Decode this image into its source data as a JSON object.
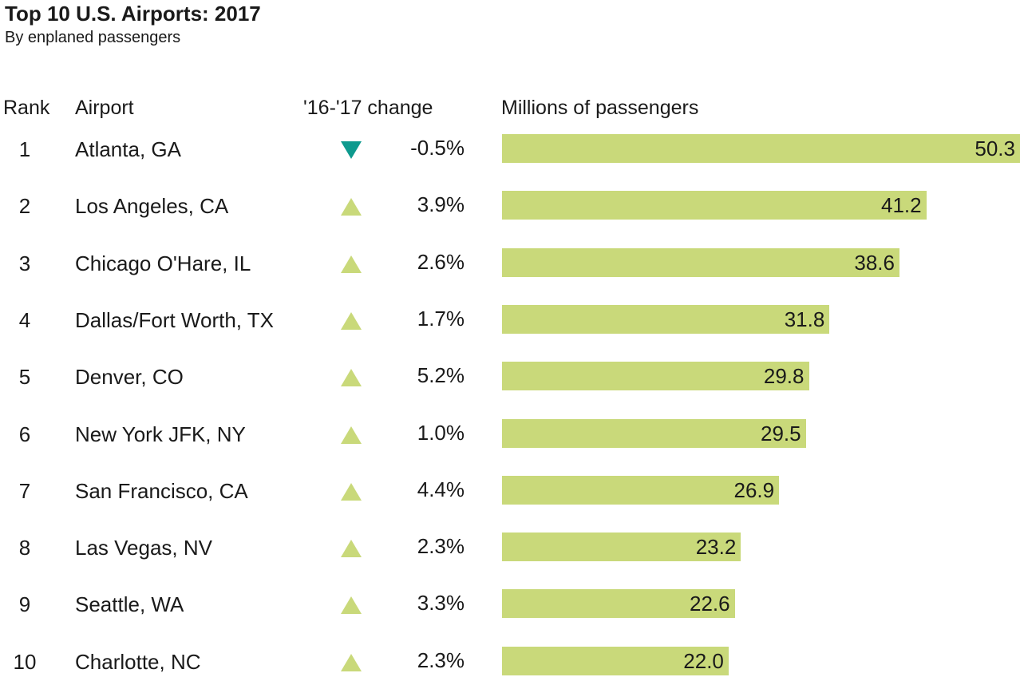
{
  "title": "Top 10 U.S. Airports: 2017",
  "subtitle": "By enplaned passengers",
  "headers": {
    "rank": "Rank",
    "airport": "Airport",
    "change": "'16-'17 change",
    "passengers": "Millions of passengers"
  },
  "colors": {
    "bar": "#c9d97a",
    "up_arrow": "#c9d97a",
    "down_arrow": "#0e9a8e"
  },
  "chart_data": {
    "type": "bar",
    "orientation": "horizontal",
    "title": "Top 10 U.S. Airports: 2017",
    "subtitle": "By enplaned passengers",
    "xlabel": "Millions of passengers",
    "xlim": [
      0,
      50.3
    ],
    "grid": false,
    "rows": [
      {
        "rank": "1",
        "airport": "Atlanta, GA",
        "change": "-0.5%",
        "direction": "down",
        "value": 50.3,
        "label": "50.3"
      },
      {
        "rank": "2",
        "airport": "Los Angeles, CA",
        "change": "3.9%",
        "direction": "up",
        "value": 41.2,
        "label": "41.2"
      },
      {
        "rank": "3",
        "airport": "Chicago O'Hare, IL",
        "change": "2.6%",
        "direction": "up",
        "value": 38.6,
        "label": "38.6"
      },
      {
        "rank": "4",
        "airport": "Dallas/Fort Worth, TX",
        "change": "1.7%",
        "direction": "up",
        "value": 31.8,
        "label": "31.8"
      },
      {
        "rank": "5",
        "airport": "Denver, CO",
        "change": "5.2%",
        "direction": "up",
        "value": 29.8,
        "label": "29.8"
      },
      {
        "rank": "6",
        "airport": "New York JFK, NY",
        "change": "1.0%",
        "direction": "up",
        "value": 29.5,
        "label": "29.5"
      },
      {
        "rank": "7",
        "airport": "San Francisco, CA",
        "change": "4.4%",
        "direction": "up",
        "value": 26.9,
        "label": "26.9"
      },
      {
        "rank": "8",
        "airport": "Las Vegas, NV",
        "change": "2.3%",
        "direction": "up",
        "value": 23.2,
        "label": "23.2"
      },
      {
        "rank": "9",
        "airport": "Seattle, WA",
        "change": "3.3%",
        "direction": "up",
        "value": 22.6,
        "label": "22.6"
      },
      {
        "rank": "10",
        "airport": "Charlotte, NC",
        "change": "2.3%",
        "direction": "up",
        "value": 22.0,
        "label": "22.0"
      }
    ]
  }
}
